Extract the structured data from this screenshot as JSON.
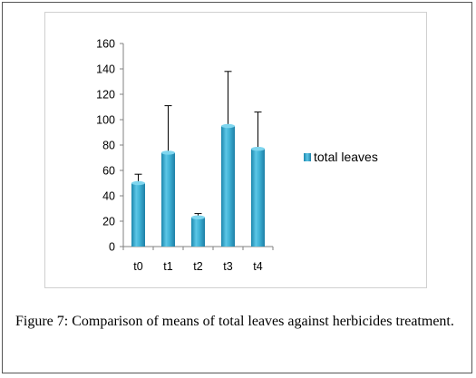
{
  "chart_data": {
    "type": "bar",
    "categories": [
      "t0",
      "t1",
      "t2",
      "t3",
      "t4"
    ],
    "series": [
      {
        "name": "total leaves",
        "values": [
          50,
          74,
          23,
          95,
          77
        ],
        "error_upper": [
          57,
          111,
          26,
          138,
          106
        ],
        "color": "#35a9cf"
      }
    ],
    "yticks": [
      "0",
      "20",
      "40",
      "60",
      "80",
      "100",
      "120",
      "140",
      "160"
    ],
    "ylim": [
      0,
      160
    ],
    "ystep": 20,
    "grid": false,
    "legend_position": "right"
  },
  "caption": {
    "label": "Figure 7:",
    "text": "Comparison of means of total leaves against herbicides treatment."
  }
}
